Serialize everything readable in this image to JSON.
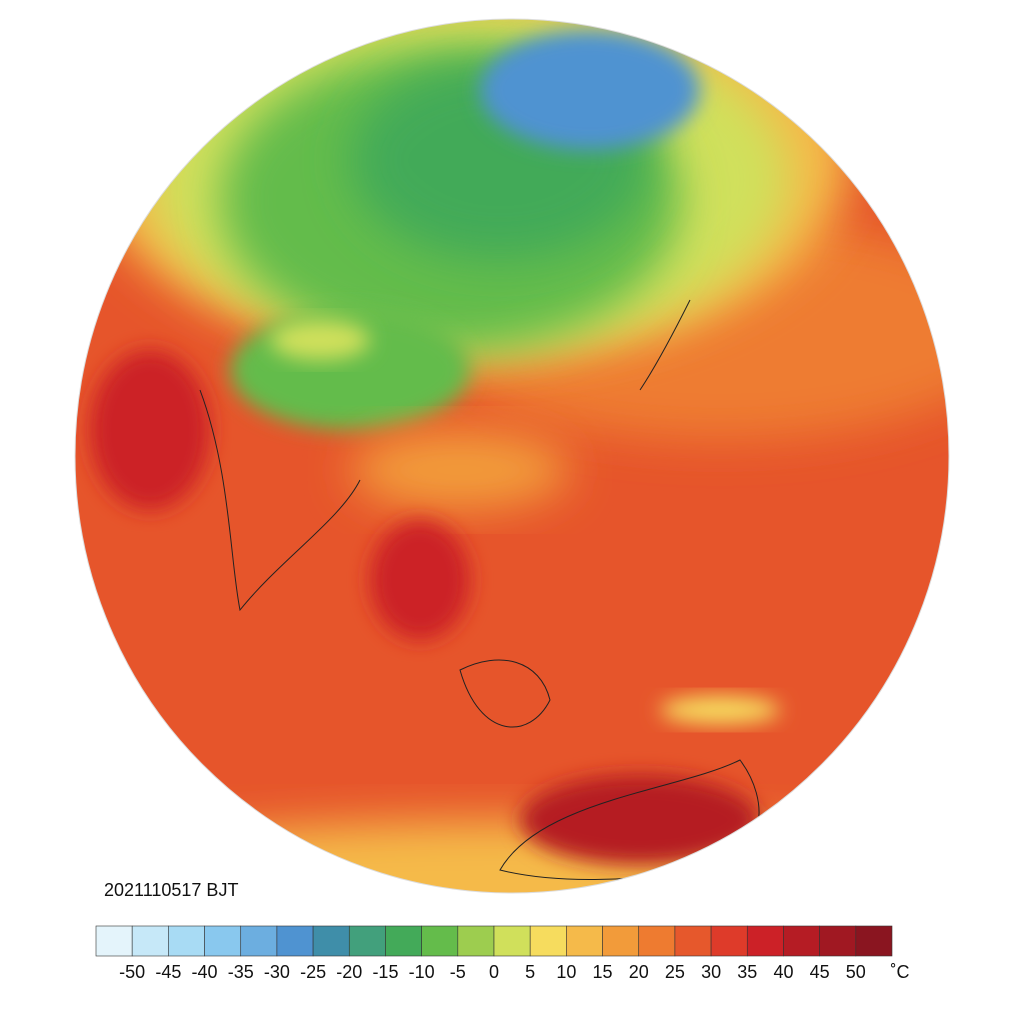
{
  "timestamp": "2021110517 BJT",
  "colorbar": {
    "ticks": [
      -50,
      -45,
      -40,
      -35,
      -30,
      -25,
      -20,
      -15,
      -10,
      -5,
      0,
      5,
      10,
      15,
      20,
      25,
      30,
      35,
      40,
      45,
      50
    ],
    "unit": "˚C",
    "colors": [
      "#e4f4fb",
      "#c6e8f8",
      "#a8dbf4",
      "#89c8ee",
      "#6caee0",
      "#4f93d1",
      "#3f8ea9",
      "#42a07c",
      "#43aa59",
      "#64bc4b",
      "#9dcd4f",
      "#d0e05b",
      "#f6dc5e",
      "#f5ba4a",
      "#f29b3a",
      "#ee7b30",
      "#e6582c",
      "#de3b2a",
      "#cc2127",
      "#b51c24",
      "#a01822",
      "#8a1520"
    ]
  }
}
